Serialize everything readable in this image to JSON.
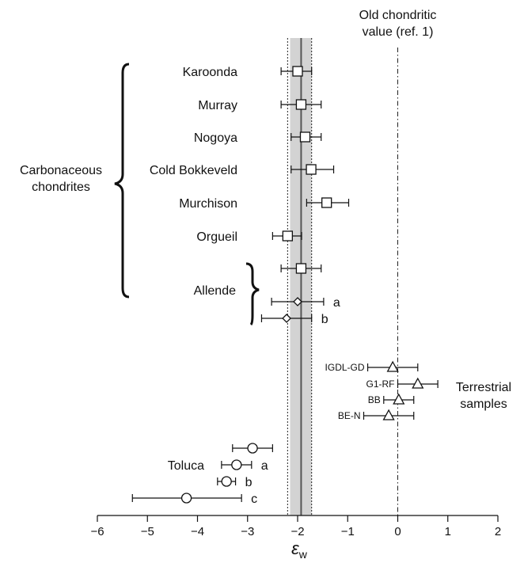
{
  "chart_data": {
    "type": "scatter",
    "xlabel_symbol": "ε",
    "xlabel_sub": "w",
    "xlim": [
      -6,
      2
    ],
    "xticks": [
      -6,
      -5,
      -4,
      -3,
      -2,
      -1,
      0,
      1,
      2
    ],
    "xtick_labels": [
      "−6",
      "−5",
      "−4",
      "−3",
      "−2",
      "−1",
      "0",
      "1",
      "2"
    ],
    "mean_line": -1.93,
    "mean_band": [
      -2.15,
      -1.72
    ],
    "outer_band": [
      -2.2,
      -1.72
    ],
    "reference": {
      "x": 0,
      "label_line1": "Old chondritic",
      "label_line2": "value (ref. 1)"
    },
    "groups": {
      "carbonaceous": {
        "line1": "Carbonaceous",
        "line2": "chondrites"
      },
      "allende": "Allende",
      "terrestrial": {
        "line1": "Terrestrial",
        "line2": "samples"
      },
      "toluca": "Toluca"
    },
    "points": [
      {
        "label": "Karoonda",
        "marker": "square",
        "x": -2.0,
        "lo": -2.33,
        "hi": -1.72
      },
      {
        "label": "Murray",
        "marker": "square",
        "x": -1.93,
        "lo": -2.33,
        "hi": -1.53
      },
      {
        "label": "Nogoya",
        "marker": "square",
        "x": -1.85,
        "lo": -2.13,
        "hi": -1.53
      },
      {
        "label": "Cold Bokkeveld",
        "marker": "square",
        "x": -1.73,
        "lo": -2.13,
        "hi": -1.28
      },
      {
        "label": "Murchison",
        "marker": "square",
        "x": -1.42,
        "lo": -1.82,
        "hi": -0.98
      },
      {
        "label": "Orgueil",
        "marker": "square",
        "x": -2.2,
        "lo": -2.5,
        "hi": -1.92
      },
      {
        "label": "",
        "marker": "square",
        "x": -1.93,
        "lo": -2.33,
        "hi": -1.53
      },
      {
        "label": "a",
        "marker": "diamond",
        "x": -2.0,
        "lo": -2.52,
        "hi": -1.48
      },
      {
        "label": "b",
        "marker": "diamond",
        "x": -2.22,
        "lo": -2.72,
        "hi": -1.72
      },
      {
        "label": "IGDL-GD",
        "marker": "triangle",
        "x": -0.1,
        "lo": -0.6,
        "hi": 0.4
      },
      {
        "label": "G1-RF",
        "marker": "triangle",
        "x": 0.4,
        "lo": 0.0,
        "hi": 0.8
      },
      {
        "label": "BB",
        "marker": "triangle",
        "x": 0.02,
        "lo": -0.28,
        "hi": 0.32
      },
      {
        "label": "BE-N",
        "marker": "triangle",
        "x": -0.18,
        "lo": -0.68,
        "hi": 0.32
      },
      {
        "label": "",
        "marker": "circle",
        "x": -2.9,
        "lo": -3.3,
        "hi": -2.5
      },
      {
        "label": "a",
        "marker": "circle",
        "x": -3.22,
        "lo": -3.52,
        "hi": -2.92
      },
      {
        "label": "b",
        "marker": "circle",
        "x": -3.42,
        "lo": -3.6,
        "hi": -3.24
      },
      {
        "label": "c",
        "marker": "circle",
        "x": -4.22,
        "lo": -5.3,
        "hi": -3.12
      }
    ]
  }
}
